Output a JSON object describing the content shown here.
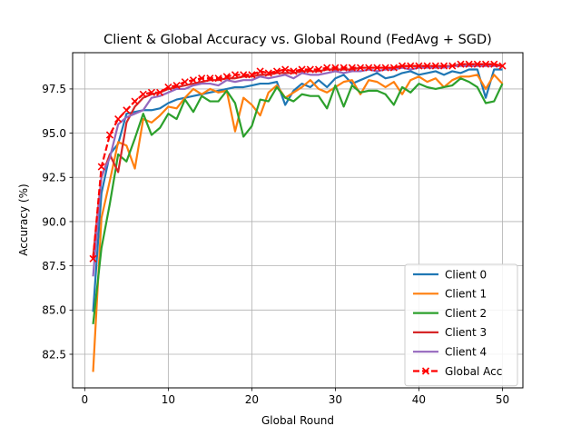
{
  "chart_data": {
    "type": "line",
    "title": "Client & Global Accuracy vs. Global Round (FedAvg + SGD)",
    "xlabel": "Global Round",
    "ylabel": "Accuracy (%)",
    "xlim": [
      -1.45,
      52.45
    ],
    "ylim": [
      80.6,
      99.55
    ],
    "xticks": [
      0,
      10,
      20,
      30,
      40,
      50
    ],
    "yticks": [
      82.5,
      85.0,
      87.5,
      90.0,
      92.5,
      95.0,
      97.5
    ],
    "ytick_labels": [
      "82.5",
      "85.0",
      "87.5",
      "90.0",
      "92.5",
      "95.0",
      "97.5"
    ],
    "grid": true,
    "legend_position": "lower-right",
    "series": [
      {
        "name": "Client 0",
        "color": "#1f77b4",
        "marker": "none",
        "dashed": false,
        "values": [
          84.9,
          91.6,
          93.8,
          94.4,
          96.1,
          96.2,
          96.3,
          96.3,
          96.4,
          96.7,
          96.9,
          97.0,
          97.1,
          97.2,
          97.3,
          97.4,
          97.5,
          97.6,
          97.6,
          97.7,
          97.8,
          97.8,
          97.9,
          96.6,
          97.4,
          97.8,
          97.6,
          98.0,
          97.6,
          98.1,
          98.3,
          97.8,
          98.0,
          98.2,
          98.4,
          98.1,
          98.2,
          98.4,
          98.5,
          98.3,
          98.4,
          98.5,
          98.3,
          98.5,
          98.4,
          98.6,
          98.6,
          97.0,
          98.6,
          98.6
        ]
      },
      {
        "name": "Client 1",
        "color": "#ff7f0e",
        "marker": "none",
        "dashed": false,
        "values": [
          81.5,
          90.2,
          92.3,
          94.5,
          94.3,
          93.0,
          95.8,
          95.6,
          96.0,
          96.5,
          96.4,
          97.0,
          97.5,
          97.2,
          97.5,
          97.3,
          97.4,
          95.1,
          97.0,
          96.6,
          96.0,
          97.3,
          97.7,
          97.0,
          97.3,
          97.6,
          98.0,
          97.5,
          97.3,
          97.6,
          97.9,
          98.0,
          97.2,
          98.0,
          97.9,
          97.6,
          97.9,
          97.2,
          98.0,
          98.2,
          97.9,
          98.1,
          97.6,
          98.0,
          98.2,
          98.2,
          98.3,
          97.5,
          98.3,
          97.8
        ]
      },
      {
        "name": "Client 2",
        "color": "#2ca02c",
        "marker": "none",
        "dashed": false,
        "values": [
          84.2,
          88.5,
          91.0,
          93.8,
          93.4,
          94.7,
          96.1,
          94.9,
          95.3,
          96.1,
          95.8,
          96.9,
          96.2,
          97.1,
          96.8,
          96.8,
          97.4,
          96.7,
          94.8,
          95.4,
          96.9,
          96.8,
          97.6,
          97.0,
          96.8,
          97.2,
          97.1,
          97.1,
          96.4,
          97.7,
          96.5,
          97.7,
          97.3,
          97.4,
          97.4,
          97.2,
          96.6,
          97.6,
          97.3,
          97.8,
          97.6,
          97.5,
          97.6,
          97.7,
          98.1,
          97.9,
          97.6,
          96.7,
          96.8,
          97.8
        ]
      },
      {
        "name": "Client 3",
        "color": "#d62728",
        "marker": "none",
        "dashed": false,
        "values": [
          88.0,
          92.5,
          93.8,
          92.8,
          95.6,
          96.5,
          97.0,
          97.2,
          97.3,
          97.5,
          97.6,
          97.7,
          97.8,
          97.9,
          98.0,
          98.0,
          98.1,
          98.1,
          98.2,
          98.2,
          98.3,
          98.3,
          98.4,
          98.4,
          98.4,
          98.5,
          98.5,
          98.5,
          98.6,
          98.6,
          98.6,
          98.6,
          98.7,
          98.7,
          98.7,
          98.7,
          98.7,
          98.8,
          98.8,
          98.8,
          98.8,
          98.8,
          98.8,
          98.8,
          98.9,
          98.9,
          98.9,
          98.9,
          98.9,
          98.8
        ]
      },
      {
        "name": "Client 4",
        "color": "#9467bd",
        "marker": "none",
        "dashed": false,
        "values": [
          86.9,
          92.6,
          93.6,
          95.5,
          95.9,
          96.1,
          96.3,
          97.0,
          97.1,
          97.3,
          97.5,
          97.5,
          97.7,
          97.8,
          97.8,
          97.7,
          98.0,
          97.9,
          98.0,
          98.0,
          98.2,
          98.1,
          98.2,
          98.3,
          98.1,
          98.4,
          98.3,
          98.3,
          98.4,
          98.5,
          98.4,
          98.5,
          98.5,
          98.6,
          98.5,
          98.6,
          98.6,
          98.7,
          98.6,
          98.7,
          98.7,
          98.7,
          98.7,
          98.8,
          98.8,
          98.8,
          98.8,
          98.8,
          98.8,
          98.8
        ]
      },
      {
        "name": "Global Acc",
        "color": "#ff0000",
        "marker": "x",
        "dashed": true,
        "values": [
          87.9,
          93.1,
          94.9,
          95.8,
          96.3,
          96.8,
          97.2,
          97.3,
          97.3,
          97.6,
          97.7,
          97.9,
          98.0,
          98.1,
          98.1,
          98.1,
          98.2,
          98.3,
          98.3,
          98.3,
          98.5,
          98.4,
          98.5,
          98.6,
          98.5,
          98.6,
          98.6,
          98.6,
          98.7,
          98.7,
          98.7,
          98.7,
          98.7,
          98.7,
          98.7,
          98.7,
          98.7,
          98.8,
          98.8,
          98.8,
          98.8,
          98.8,
          98.8,
          98.8,
          98.9,
          98.9,
          98.9,
          98.9,
          98.9,
          98.8
        ]
      }
    ]
  }
}
